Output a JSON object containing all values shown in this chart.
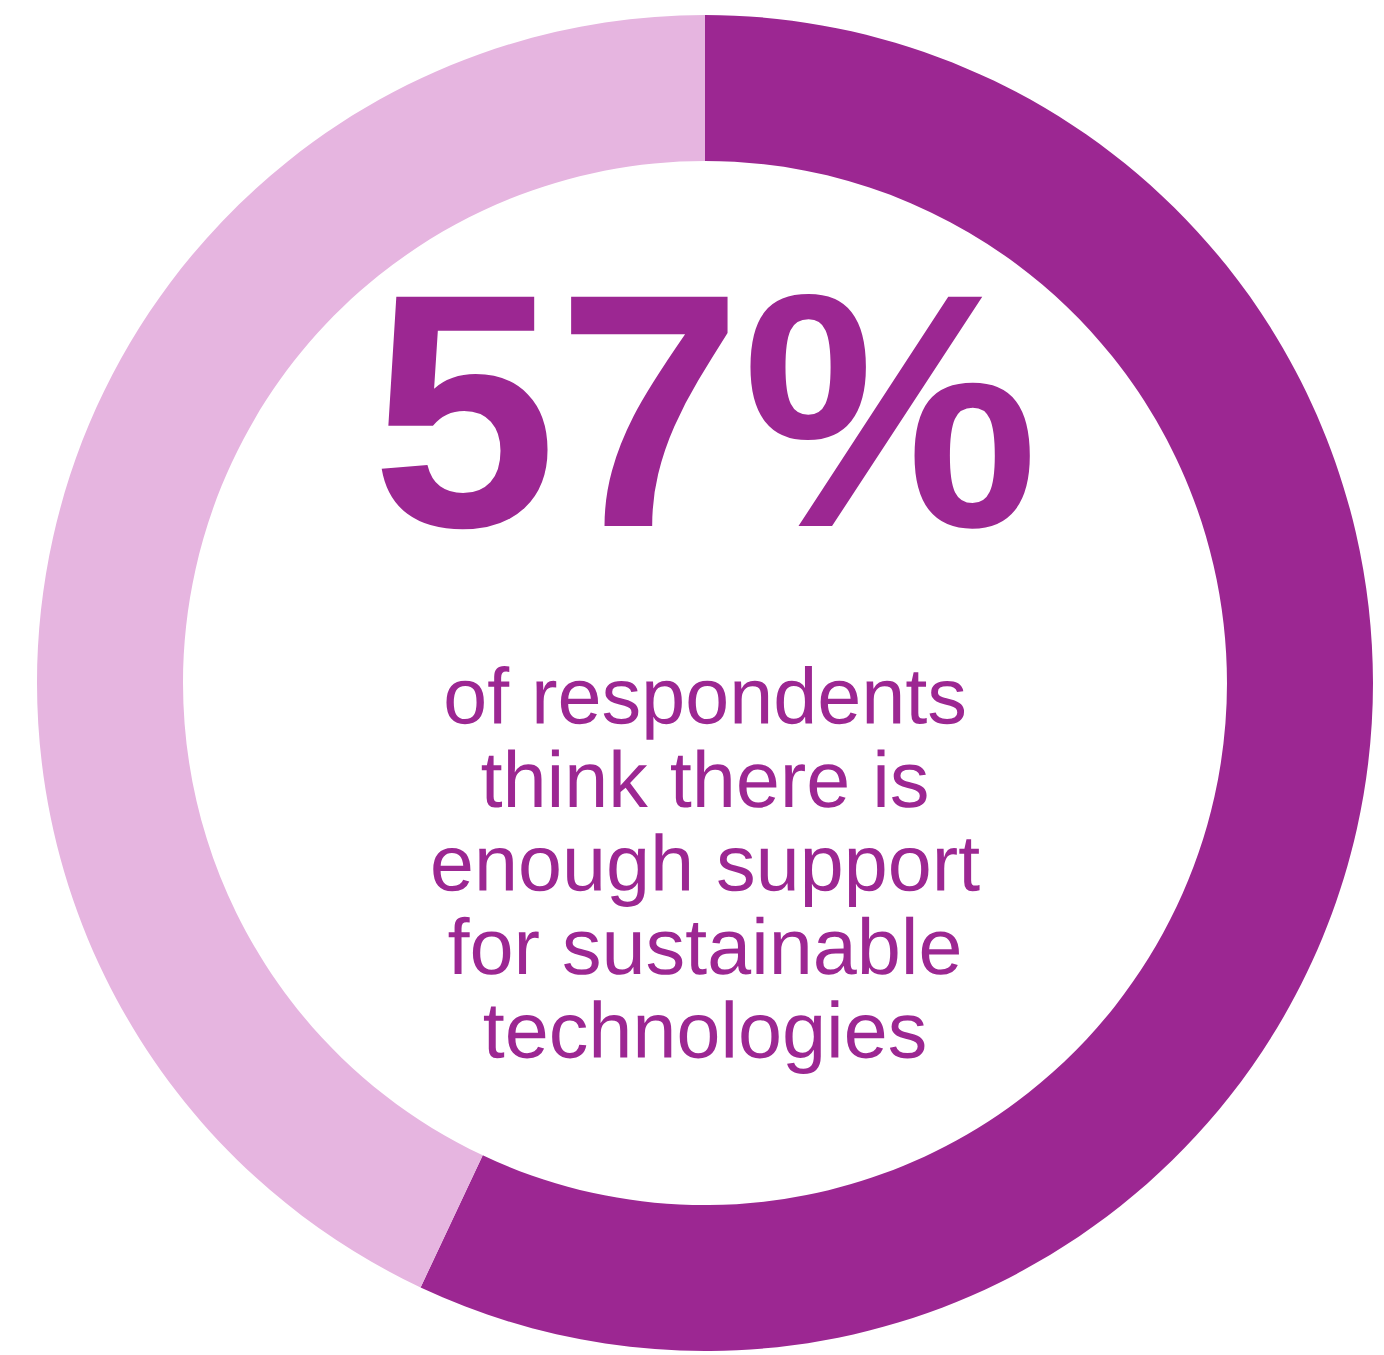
{
  "chart_data": {
    "type": "donut",
    "categories": [
      null,
      null
    ],
    "values": [
      57,
      43
    ],
    "colors": [
      "#9c2792",
      "#e6b5e0"
    ],
    "value_labels": [
      "57%",
      null
    ],
    "annotations": [
      "of respondents\nthink there is\nenough support\nfor sustainable\ntechnologies"
    ],
    "legend": false
  }
}
